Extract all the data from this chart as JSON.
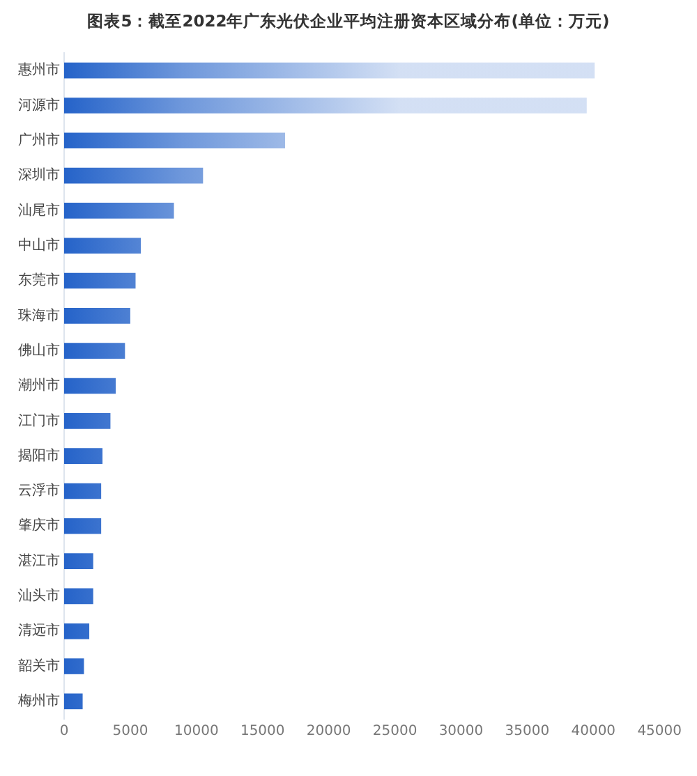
{
  "chart_data": {
    "type": "bar",
    "orientation": "horizontal",
    "title": "图表5：截至2022年广东光伏企业平均注册资本区域分布(单位：万元)",
    "categories": [
      "惠州市",
      "河源市",
      "广州市",
      "深圳市",
      "汕尾市",
      "中山市",
      "东莞市",
      "珠海市",
      "佛山市",
      "潮州市",
      "江门市",
      "揭阳市",
      "云浮市",
      "肇庆市",
      "湛江市",
      "汕头市",
      "清远市",
      "韶关市",
      "梅州市"
    ],
    "values": [
      40100,
      39500,
      16700,
      10500,
      8300,
      5800,
      5400,
      5000,
      4600,
      3900,
      3500,
      2900,
      2800,
      2800,
      2200,
      2200,
      1900,
      1500,
      1400
    ],
    "color": "#2563c9",
    "xlim": [
      0,
      45000
    ],
    "xticks": [
      0,
      5000,
      10000,
      15000,
      20000,
      25000,
      30000,
      35000,
      40000,
      45000
    ],
    "grid": false,
    "legend": false
  }
}
